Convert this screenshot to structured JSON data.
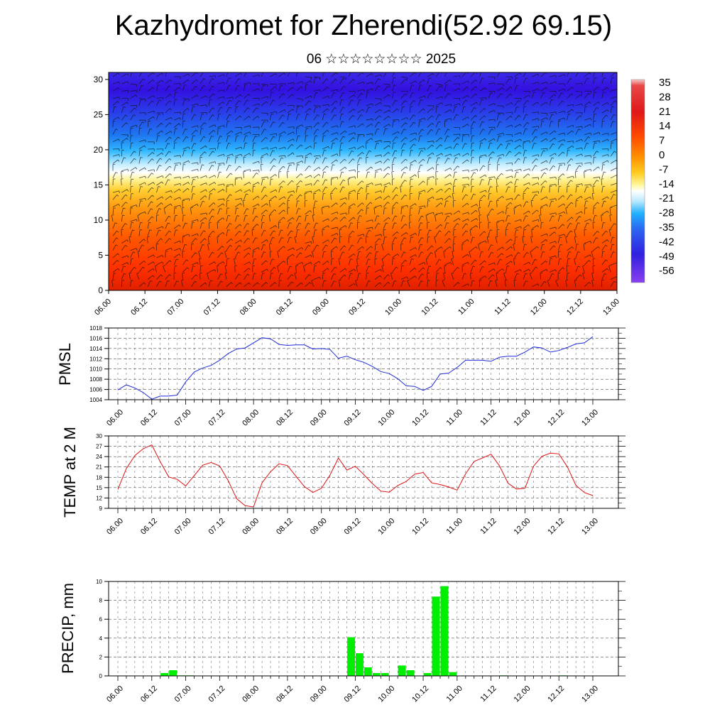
{
  "title": "Kazhydromet for Zherendi(52.92 69.15)",
  "subtitle": "06 ☆☆☆☆☆☆☆☆ 2025",
  "colors": {
    "pmsl_line": "#1f2bd8",
    "temp_line": "#e01010",
    "precip_bar": "#00ee00"
  },
  "chart_data": [
    {
      "type": "heatmap",
      "name": "vertical-profile",
      "x_tick_labels": [
        "06.00",
        "06.12",
        "07.00",
        "07.12",
        "08.00",
        "08.12",
        "09.00",
        "09.12",
        "10.00",
        "10.12",
        "11.00",
        "11.12",
        "12.00",
        "12.12",
        "13.00"
      ],
      "y_ticks": [
        0,
        5,
        10,
        15,
        20,
        25,
        30
      ],
      "ylim": [
        0,
        31
      ],
      "colorbar_labels": [
        "35",
        "28",
        "21",
        "14",
        "7",
        "0",
        "-7",
        "-14",
        "-21",
        "-28",
        "-35",
        "-42",
        "-49",
        "-56"
      ],
      "freezing_level_approx": 16.5
    },
    {
      "type": "line",
      "name": "pmsl",
      "ylabel": "PMSL",
      "y_ticks": [
        1004,
        1006,
        1008,
        1010,
        1012,
        1014,
        1016,
        1018
      ],
      "ylim": [
        1004,
        1018
      ],
      "x_tick_labels": [
        "06.00",
        "06.12",
        "07.00",
        "07.12",
        "08.00",
        "08.12",
        "09.00",
        "09.12",
        "10.00",
        "10.12",
        "11.00",
        "11.12",
        "12.00",
        "12.12",
        "13.00"
      ],
      "x_step_hours": 3,
      "values": [
        1005.9,
        1006.9,
        1006.3,
        1005.4,
        1004.1,
        1004.7,
        1004.7,
        1004.9,
        1007.5,
        1009.4,
        1010.2,
        1010.7,
        1011.7,
        1013.0,
        1013.9,
        1014.1,
        1015.1,
        1016.1,
        1015.9,
        1014.8,
        1014.6,
        1014.7,
        1014.7,
        1013.9,
        1014.0,
        1013.8,
        1012.1,
        1012.5,
        1011.8,
        1011.3,
        1010.5,
        1009.5,
        1009.1,
        1008.1,
        1006.7,
        1006.6,
        1005.8,
        1006.6,
        1009.0,
        1009.2,
        1010.3,
        1011.7,
        1011.7,
        1011.7,
        1011.5,
        1012.3,
        1012.5,
        1012.5,
        1013.3,
        1014.3,
        1014.1,
        1013.3,
        1013.6,
        1014.2,
        1014.9,
        1015.1,
        1016.3
      ]
    },
    {
      "type": "line",
      "name": "temp",
      "ylabel": "TEMP at 2 M",
      "y_ticks": [
        9,
        12,
        15,
        18,
        21,
        24,
        27,
        30
      ],
      "ylim": [
        9,
        30
      ],
      "x_tick_labels": [
        "06.00",
        "06.12",
        "07.00",
        "07.12",
        "08.00",
        "08.12",
        "09.00",
        "09.12",
        "10.00",
        "10.12",
        "11.00",
        "11.12",
        "12.00",
        "12.12",
        "13.00"
      ],
      "x_step_hours": 3,
      "values": [
        14.5,
        20.5,
        24.3,
        26.3,
        27.4,
        22.5,
        18.1,
        17.4,
        15.5,
        18.5,
        21.5,
        22.3,
        21.3,
        17.1,
        11.8,
        9.8,
        9.4,
        16.4,
        19.6,
        21.9,
        21.4,
        18.3,
        15.3,
        13.6,
        14.8,
        18.6,
        23.6,
        20.1,
        21.2,
        18.8,
        16.2,
        14.0,
        13.7,
        15.6,
        16.8,
        18.9,
        19.4,
        16.4,
        15.9,
        15.2,
        14.3,
        19.0,
        22.6,
        23.6,
        24.7,
        21.3,
        16.3,
        14.6,
        14.8,
        21.2,
        24.1,
        25.0,
        24.8,
        21.0,
        15.7,
        13.6,
        12.7
      ]
    },
    {
      "type": "bar",
      "name": "precip",
      "ylabel": "PRECIP, mm",
      "y_ticks": [
        0,
        2,
        4,
        6,
        8,
        10
      ],
      "ylim": [
        0,
        10
      ],
      "x_tick_labels": [
        "06.00",
        "06.12",
        "07.00",
        "07.12",
        "08.00",
        "08.12",
        "09.00",
        "09.12",
        "10.00",
        "10.12",
        "11.00",
        "11.12",
        "12.00",
        "12.12",
        "13.00"
      ],
      "x_step_hours": 3,
      "values": [
        0,
        0,
        0,
        0,
        0,
        0.3,
        0.6,
        0.05,
        0.05,
        0,
        0,
        0,
        0,
        0,
        0,
        0,
        0,
        0,
        0,
        0,
        0,
        0,
        0,
        0,
        0,
        0,
        0,
        4.1,
        2.4,
        0.9,
        0.3,
        0.3,
        0,
        1.1,
        0.6,
        0,
        0.3,
        8.4,
        9.5,
        0.4,
        0,
        0,
        0,
        0,
        0,
        0.05,
        0,
        0,
        0,
        0,
        0,
        0,
        0.05,
        0,
        0,
        0,
        0
      ]
    }
  ]
}
